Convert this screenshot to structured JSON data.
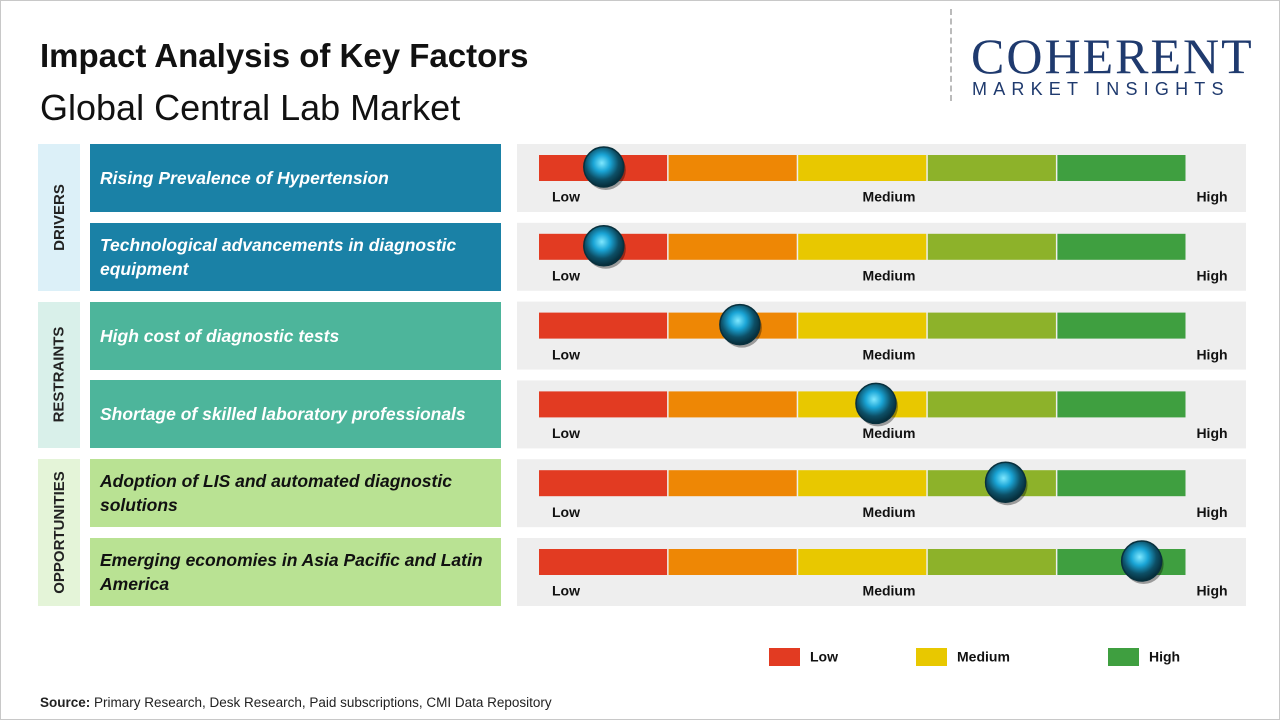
{
  "header": {
    "title": "Impact Analysis of Key Factors",
    "subtitle": "Global Central Lab Market"
  },
  "logo": {
    "name": "COHERENT",
    "tagline": "MARKET INSIGHTS"
  },
  "scale": {
    "range": [
      0,
      100
    ],
    "labels": [
      "Low",
      "Medium",
      "High"
    ],
    "segment_colors": [
      "#e23b22",
      "#ee8705",
      "#e8c800",
      "#8db22a",
      "#3f9f40"
    ]
  },
  "groups": [
    {
      "label": "DRIVERS",
      "side_color": "#dcf0f8",
      "box_color": "#1a81a6",
      "text_color": "#ffffff",
      "factors": [
        {
          "text": "Rising Prevalence  of Hypertension",
          "impact": 10
        },
        {
          "text": "Technological  advancements  in diagnostic equipment",
          "impact": 10
        }
      ]
    },
    {
      "label": "RESTRAINTS",
      "side_color": "#d9f0ea",
      "box_color": "#4db59b",
      "text_color": "#ffffff",
      "factors": [
        {
          "text": "High cost of diagnostic  tests",
          "impact": 31
        },
        {
          "text": "Shortage  of skilled  laboratory  professionals",
          "impact": 52
        }
      ]
    },
    {
      "label": "OPPORTUNITIES",
      "side_color": "#e4f4d8",
      "box_color": "#b9e293",
      "text_color": "#111111",
      "factors": [
        {
          "text": "Adoption  of LIS and automated  diagnostic solutions",
          "impact": 72
        },
        {
          "text": "Emerging  economies  in Asia Pacific and Latin America",
          "impact": 93
        }
      ]
    }
  ],
  "legend": [
    {
      "label": "Low",
      "color": "#e23b22"
    },
    {
      "label": "Medium",
      "color": "#e8c800"
    },
    {
      "label": "High",
      "color": "#3f9f40"
    }
  ],
  "source": {
    "label": "Source:",
    "text": " Primary Research, Desk Research, Paid subscriptions, CMI Data Repository"
  }
}
